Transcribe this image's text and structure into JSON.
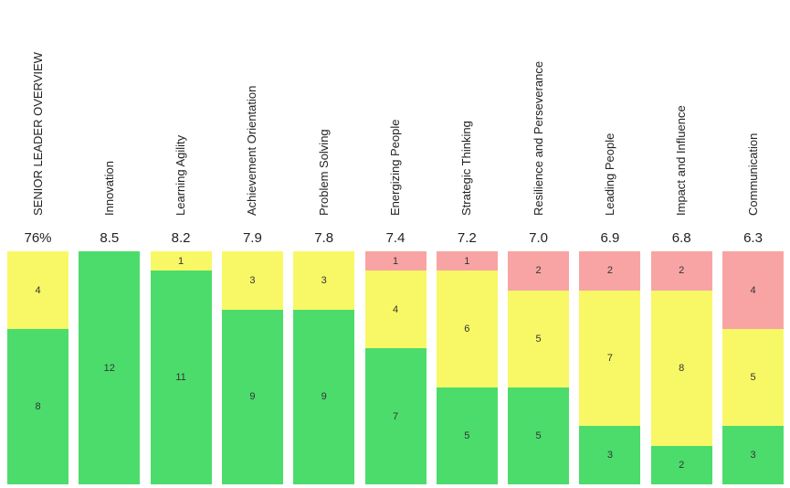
{
  "colors": {
    "green": "#4cdc6c",
    "yellow": "#f8f866",
    "red": "#f8a4a4"
  },
  "chart_data": {
    "type": "bar",
    "stacked": true,
    "categories": [
      "SENIOR LEADER OVERVIEW",
      "Innovation",
      "Learning Agility",
      "Achievement Orientation",
      "Problem Solving",
      "Energizing People",
      "Strategic Thinking",
      "Resilience and Perseverance",
      "Leading People",
      "Impact and Influence",
      "Communication"
    ],
    "scores": [
      "76%",
      "8.5",
      "8.2",
      "7.9",
      "7.8",
      "7.4",
      "7.2",
      "7.0",
      "6.9",
      "6.8",
      "6.3"
    ],
    "series": [
      {
        "color": "green",
        "values": [
          8,
          12,
          11,
          9,
          9,
          7,
          5,
          5,
          3,
          2,
          3
        ]
      },
      {
        "color": "yellow",
        "values": [
          4,
          0,
          1,
          3,
          3,
          4,
          6,
          5,
          7,
          8,
          5
        ]
      },
      {
        "color": "red",
        "values": [
          0,
          0,
          0,
          0,
          0,
          1,
          1,
          2,
          2,
          2,
          4
        ]
      }
    ],
    "ylim": [
      0,
      12
    ],
    "legend": "none",
    "grid": false
  }
}
